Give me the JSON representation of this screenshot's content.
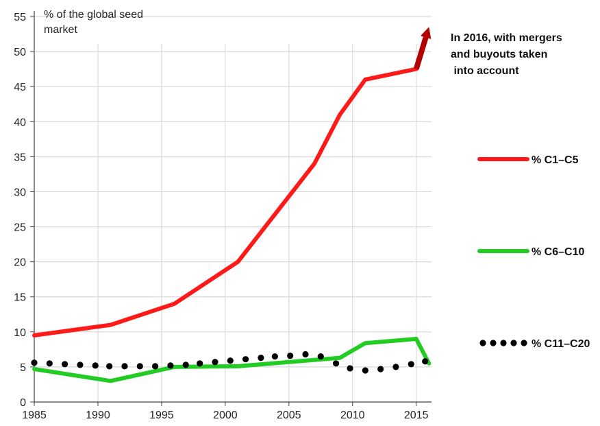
{
  "chart_data": {
    "type": "line",
    "ylabel_lines": [
      "% of the global seed",
      "market"
    ],
    "xlim": [
      1985,
      2016.2
    ],
    "ylim": [
      0,
      55
    ],
    "x_ticks": [
      1985,
      1990,
      1995,
      2000,
      2005,
      2010,
      2015
    ],
    "y_ticks": [
      0,
      5,
      10,
      15,
      20,
      25,
      30,
      35,
      40,
      45,
      50,
      55
    ],
    "grid": true,
    "legend_position": "right",
    "annotation_lines": [
      "In 2016, with mergers",
      "and buyouts taken",
      " into account"
    ],
    "series": [
      {
        "name": "% C1–C5",
        "style": "solid",
        "color": "#ff1a1a",
        "x": [
          1985,
          1991,
          1996,
          2001,
          2004,
          2007,
          2009,
          2011,
          2015
        ],
        "y": [
          9.5,
          11,
          14,
          20,
          27,
          34,
          41,
          46,
          47.5
        ]
      },
      {
        "name": "% C6–C10",
        "style": "solid",
        "color": "#22cc22",
        "x": [
          1985,
          1991,
          1996,
          2001,
          2009,
          2011,
          2015,
          2016
        ],
        "y": [
          4.7,
          3,
          5,
          5.1,
          6.3,
          8.4,
          9,
          5.5
        ]
      },
      {
        "name": "% C11–C20",
        "style": "dotted",
        "color": "#000000",
        "x": [
          1985,
          1986.2,
          1987.4,
          1988.6,
          1989.8,
          1990.9,
          1992.1,
          1993.3,
          1994.5,
          1995.7,
          1996.9,
          1998,
          1999.2,
          2000.4,
          2001.6,
          2002.8,
          2003.9,
          2005.1,
          2006.3,
          2007.5,
          2008.7,
          2009.8,
          2011,
          2012.2,
          2013.4,
          2014.6,
          2015.7
        ],
        "y": [
          5.6,
          5.5,
          5.4,
          5.3,
          5.2,
          5.1,
          5.1,
          5.1,
          5.1,
          5.2,
          5.3,
          5.5,
          5.7,
          5.9,
          6.1,
          6.3,
          6.5,
          6.6,
          6.8,
          6.5,
          5.5,
          4.8,
          4.5,
          4.7,
          5.0,
          5.4,
          5.8
        ]
      }
    ],
    "annotation_arrow": {
      "color": "#b30000",
      "x": [
        2015,
        2016
      ],
      "y": [
        47.5,
        53.5
      ]
    }
  }
}
